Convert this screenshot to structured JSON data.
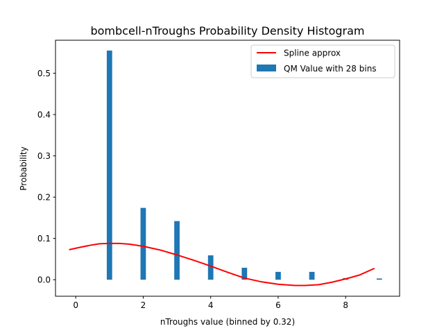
{
  "chart_data": {
    "type": "bar",
    "title": "bombcell-nTroughs Probability Density Histogram",
    "xlabel": "nTroughs value (binned by 0.32)",
    "ylabel": "Probability",
    "xlim": [
      -0.6,
      9.6
    ],
    "ylim": [
      -0.04,
      0.58
    ],
    "xticks": [
      "0",
      "2",
      "4",
      "6",
      "8"
    ],
    "xtick_values": [
      0,
      2,
      4,
      6,
      8
    ],
    "yticks": [
      "0.0",
      "0.1",
      "0.2",
      "0.3",
      "0.4",
      "0.5"
    ],
    "ytick_values": [
      0,
      0.1,
      0.2,
      0.3,
      0.4,
      0.5
    ],
    "grid": false,
    "legend_position": "top-right",
    "series": [
      {
        "name": "QM Value with 28 bins",
        "type": "bar",
        "color": "#1f77b4",
        "bar_width": 0.16,
        "x": [
          1,
          2,
          3,
          4,
          5,
          6,
          7,
          8,
          9
        ],
        "values": [
          0.555,
          0.174,
          0.142,
          0.059,
          0.029,
          0.019,
          0.019,
          0.004,
          0.003
        ]
      },
      {
        "name": "Spline approx",
        "type": "line",
        "color": "#ff0000",
        "x": [
          -0.18,
          0.1,
          0.4,
          0.7,
          1.0,
          1.3,
          1.6,
          2.0,
          2.5,
          3.0,
          3.5,
          4.0,
          4.5,
          5.0,
          5.5,
          6.0,
          6.5,
          6.8,
          7.2,
          7.6,
          8.0,
          8.4,
          8.84
        ],
        "values": [
          0.073,
          0.078,
          0.083,
          0.087,
          0.088,
          0.088,
          0.086,
          0.081,
          0.072,
          0.06,
          0.047,
          0.033,
          0.018,
          0.004,
          -0.005,
          -0.011,
          -0.014,
          -0.014,
          -0.012,
          -0.006,
          0.002,
          0.011,
          0.027
        ]
      }
    ]
  }
}
